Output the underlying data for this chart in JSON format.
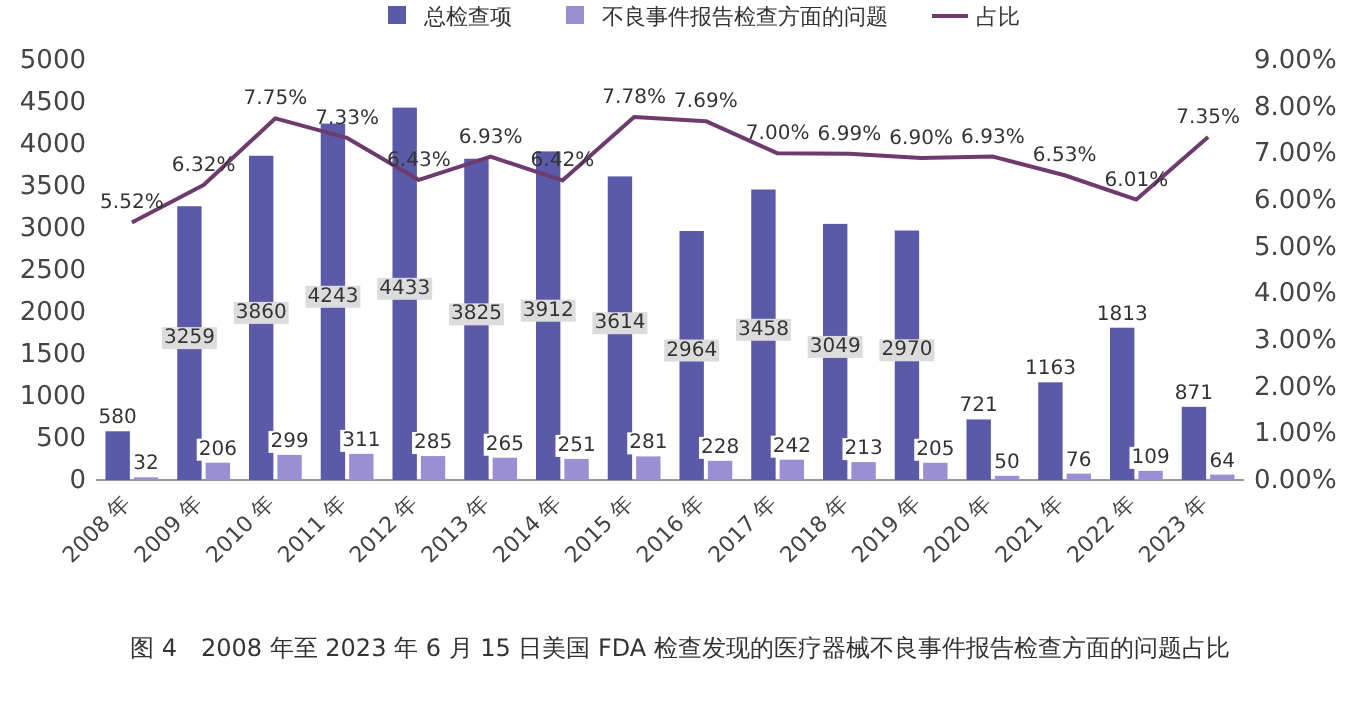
{
  "chart_data": {
    "type": "bar",
    "categories": [
      "2008 年",
      "2009 年",
      "2010 年",
      "2011 年",
      "2012 年",
      "2013 年",
      "2014 年",
      "2015 年",
      "2016 年",
      "2017 年",
      "2018 年",
      "2019 年",
      "2020 年",
      "2021 年",
      "2022 年",
      "2023 年"
    ],
    "series": [
      {
        "name": "总检查项",
        "color": "#5a5aa8",
        "values": [
          580,
          3259,
          3860,
          4243,
          4433,
          3825,
          3912,
          3614,
          2964,
          3458,
          3049,
          2970,
          721,
          1163,
          1813,
          871
        ],
        "value_labels": [
          "580",
          "3259",
          "3860",
          "4243",
          "4433",
          "3825",
          "3912",
          "3614",
          "2964",
          "3458",
          "3049",
          "2970",
          "721",
          "1163",
          "1813",
          "871"
        ]
      },
      {
        "name": "不良事件报告检查方面的问题",
        "color": "#9b8fd4",
        "values": [
          32,
          206,
          299,
          311,
          285,
          265,
          251,
          281,
          228,
          242,
          213,
          205,
          50,
          76,
          109,
          64
        ],
        "value_labels": [
          "32",
          "206",
          "299",
          "311",
          "285",
          "265",
          "251",
          "281",
          "228",
          "242",
          "213",
          "205",
          "50",
          "76",
          "109",
          "64"
        ]
      },
      {
        "name": "占比",
        "type": "line",
        "axis": "y2",
        "color": "#6e3b6e",
        "values": [
          5.52,
          6.32,
          7.75,
          7.33,
          6.43,
          6.93,
          6.42,
          7.78,
          7.69,
          7.0,
          6.99,
          6.9,
          6.93,
          6.53,
          6.01,
          7.35
        ],
        "value_labels": [
          "5.52%",
          "6.32%",
          "7.75%",
          "7.33%",
          "6.43%",
          "6.93%",
          "6.42%",
          "7.78%",
          "7.69%",
          "7.00%",
          "6.99%",
          "6.90%",
          "6.93%",
          "6.53%",
          "6.01%",
          "7.35%"
        ]
      }
    ],
    "ylim": [
      0,
      5000
    ],
    "yticks": [
      0,
      500,
      1000,
      1500,
      2000,
      2500,
      3000,
      3500,
      4000,
      4500,
      5000
    ],
    "y2lim": [
      0,
      9
    ],
    "y2ticks": [
      {
        "value": 0,
        "label": "0.00%"
      },
      {
        "value": 1,
        "label": "1.00%"
      },
      {
        "value": 2,
        "label": "2.00%"
      },
      {
        "value": 3,
        "label": "3.00%"
      },
      {
        "value": 4,
        "label": "4.00%"
      },
      {
        "value": 5,
        "label": "5.00%"
      },
      {
        "value": 6,
        "label": "6.00%"
      },
      {
        "value": 7,
        "label": "7.00%"
      },
      {
        "value": 8,
        "label": "8.00%"
      },
      {
        "value": 9,
        "label": "9.00%"
      }
    ],
    "legend": "top",
    "annotations": [
      "图 4　2008 年至 2023 年 6 月 15 日美国 FDA 检查发现的医疗器械不良事件报告检查方面的问题占比"
    ]
  }
}
